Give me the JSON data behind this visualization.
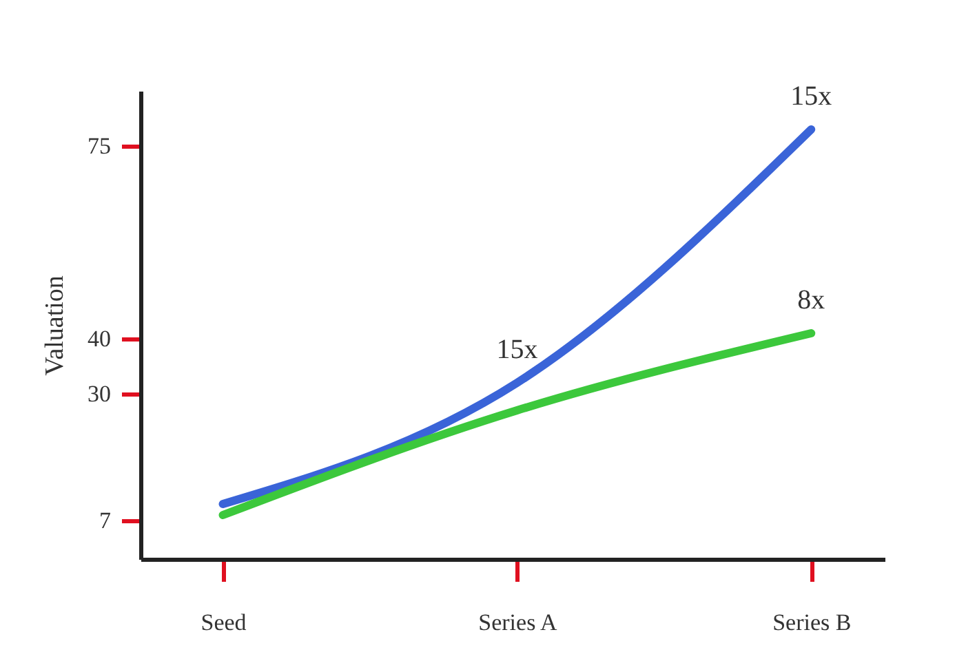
{
  "chart_data": {
    "type": "line",
    "ylabel": "Valuation",
    "categories": [
      "Seed",
      "Series A",
      "Series B"
    ],
    "series": [
      {
        "color": "#3a64d8",
        "values": [
          10,
          32,
          78
        ]
      },
      {
        "color": "#3cc83c",
        "values": [
          8,
          27,
          41
        ]
      }
    ],
    "ylim": [
      0,
      85
    ],
    "yticks": [
      7,
      30,
      40,
      75
    ],
    "grid": false,
    "legend": false,
    "marker": "none",
    "line_style": "solid",
    "annotations": [
      {
        "text": "15x",
        "x": "Series A",
        "y": 32
      },
      {
        "text": "15x",
        "x": "Series B",
        "y": 78
      },
      {
        "text": "8x",
        "x": "Series B",
        "y": 41
      }
    ]
  }
}
